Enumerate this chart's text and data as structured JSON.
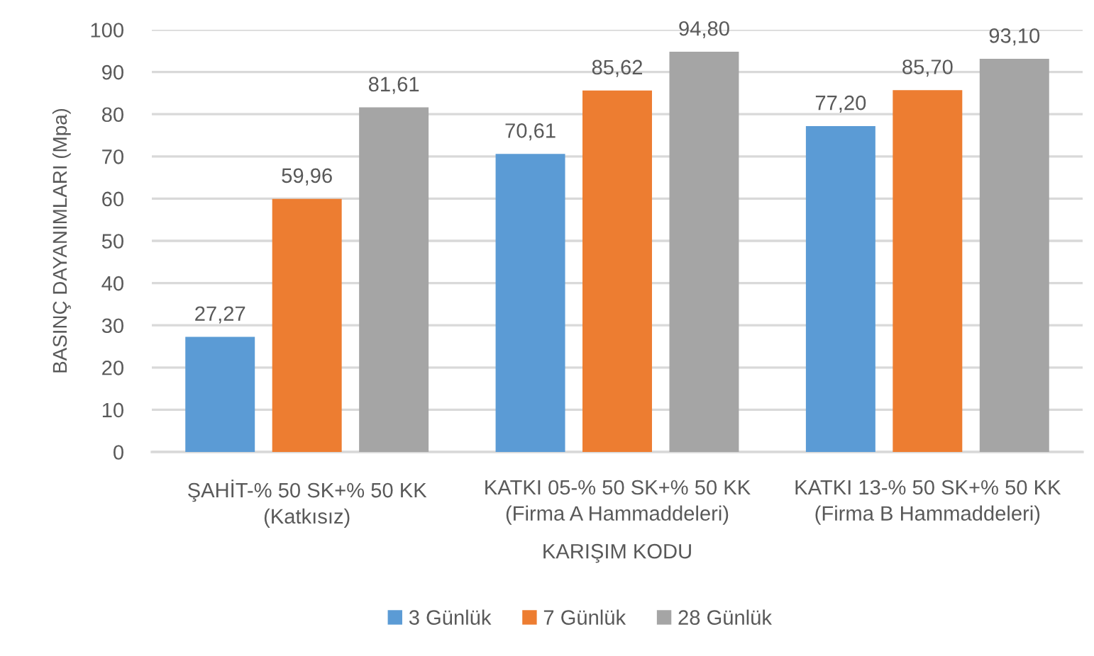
{
  "chart_data": {
    "type": "bar",
    "xlabel": "KARIŞIM KODU",
    "ylabel": "BASINÇ DAYANIMLARI (Mpa)",
    "categories": [
      "ŞAHİT-% 50 SK+% 50 KK\n(Katkısız)",
      "KATKI 05-% 50 SK+% 50 KK\n(Firma A Hammaddeleri)",
      "KATKI 13-% 50 SK+% 50 KK\n(Firma B Hammaddeleri)"
    ],
    "series": [
      {
        "name": "3 Günlük",
        "color": "#5b9bd5",
        "values": [
          27.27,
          70.61,
          77.2
        ],
        "value_labels": [
          "27,27",
          "70,61",
          "77,20"
        ]
      },
      {
        "name": "7 Günlük",
        "color": "#ed7d31",
        "values": [
          59.96,
          85.62,
          85.7
        ],
        "value_labels": [
          "59,96",
          "85,62",
          "85,70"
        ]
      },
      {
        "name": "28 Günlük",
        "color": "#a5a5a5",
        "values": [
          81.61,
          94.8,
          93.1
        ],
        "value_labels": [
          "81,61",
          "94,80",
          "93,10"
        ]
      }
    ],
    "ylim": [
      0,
      100
    ],
    "yticks": [
      0,
      10,
      20,
      30,
      40,
      50,
      60,
      70,
      80,
      90,
      100
    ],
    "grid": "y",
    "legend": "bottom"
  }
}
